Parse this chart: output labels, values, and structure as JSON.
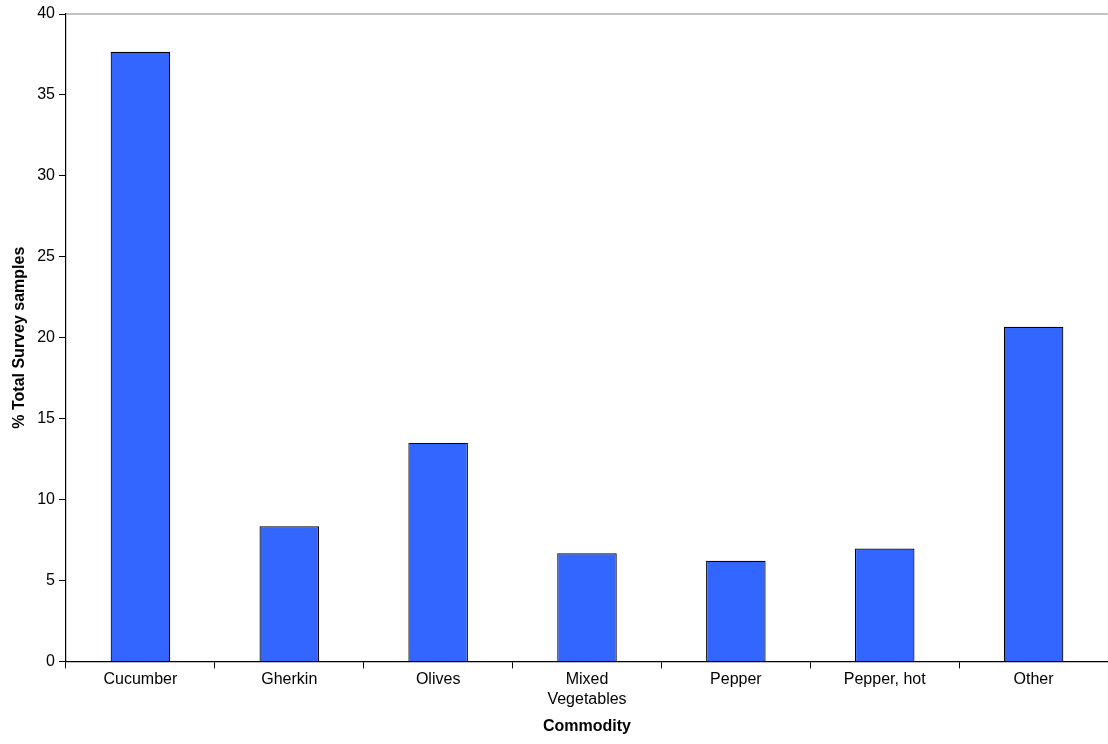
{
  "chart_data": {
    "type": "bar",
    "xlabel": "Commodity",
    "ylabel": "% Total Survey samples",
    "categories": [
      "Cucumber",
      "Gherkin",
      "Olives",
      "Mixed Vegetables",
      "Pepper",
      "Pepper, hot",
      "Other"
    ],
    "values": [
      37.66,
      8.35,
      13.5,
      6.68,
      6.22,
      6.98,
      20.67
    ],
    "color": "#3366ff",
    "ylim": [
      0,
      40
    ],
    "yticks": [
      0,
      5,
      10,
      15,
      20,
      25,
      30,
      35,
      40
    ],
    "grid": false,
    "legend": false
  }
}
